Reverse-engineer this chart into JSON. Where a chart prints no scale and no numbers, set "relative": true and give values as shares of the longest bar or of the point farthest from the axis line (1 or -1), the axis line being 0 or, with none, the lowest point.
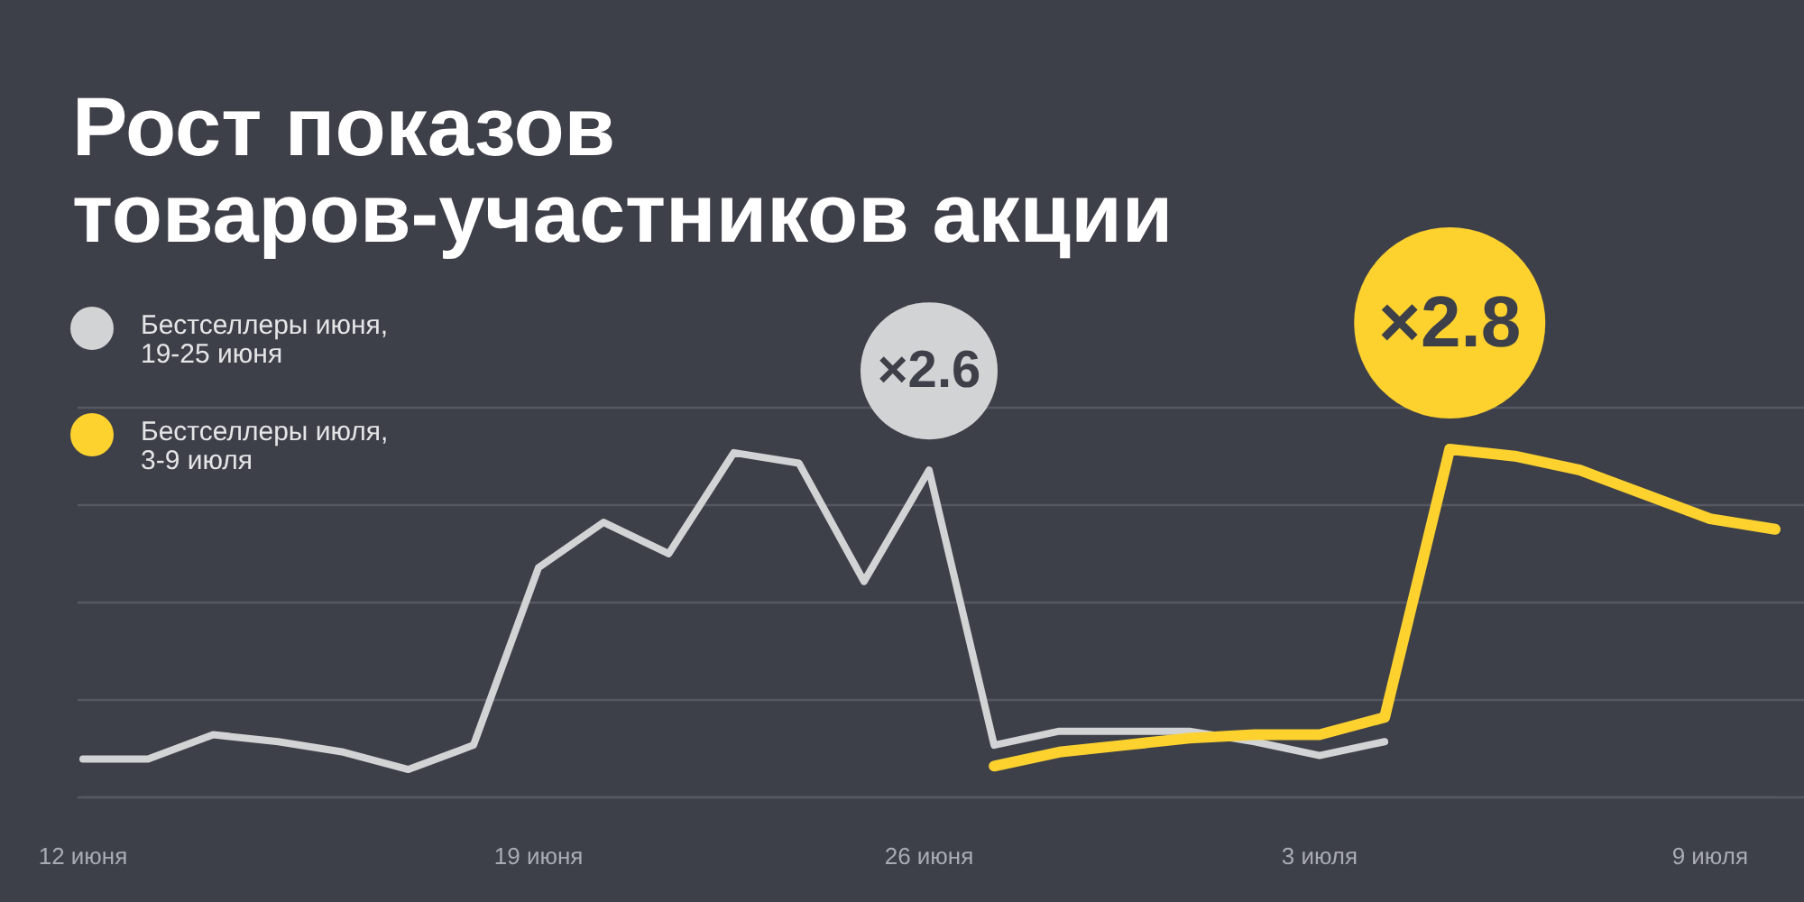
{
  "chart_data": {
    "type": "line",
    "title": "Рост показов товаров-участников акции",
    "categories": [
      "12 июня",
      null,
      null,
      null,
      null,
      null,
      null,
      "19 июня",
      null,
      null,
      null,
      null,
      null,
      "26 июня",
      null,
      null,
      null,
      null,
      null,
      "3 июля",
      null,
      null,
      null,
      null,
      null,
      "9 июля",
      null
    ],
    "series": [
      {
        "name": "Бестселлеры июня, 19-25 июня",
        "color": "#d2d3d5",
        "values": [
          0.11,
          0.11,
          0.18,
          0.16,
          0.13,
          0.08,
          0.15,
          0.66,
          0.79,
          0.7,
          0.99,
          0.96,
          0.62,
          0.94,
          0.15,
          0.19,
          0.19,
          0.19,
          0.16,
          0.12,
          0.16,
          null,
          null,
          null,
          null,
          null,
          null
        ]
      },
      {
        "name": "Бестселлеры июля, 3-9 июля",
        "color": "#fdd22f",
        "values": [
          null,
          null,
          null,
          null,
          null,
          null,
          null,
          null,
          null,
          null,
          null,
          null,
          null,
          null,
          0.09,
          0.13,
          0.15,
          0.17,
          0.18,
          0.18,
          0.23,
          1,
          0.98,
          0.94,
          0.87,
          0.8,
          0.77
        ]
      }
    ],
    "relative": true,
    "grid": true,
    "legend": "top left",
    "annotations": [
      {
        "text": "×2.6",
        "y": 0.94
      },
      {
        "text": "×2.8",
        "y": 1
      }
    ]
  }
}
